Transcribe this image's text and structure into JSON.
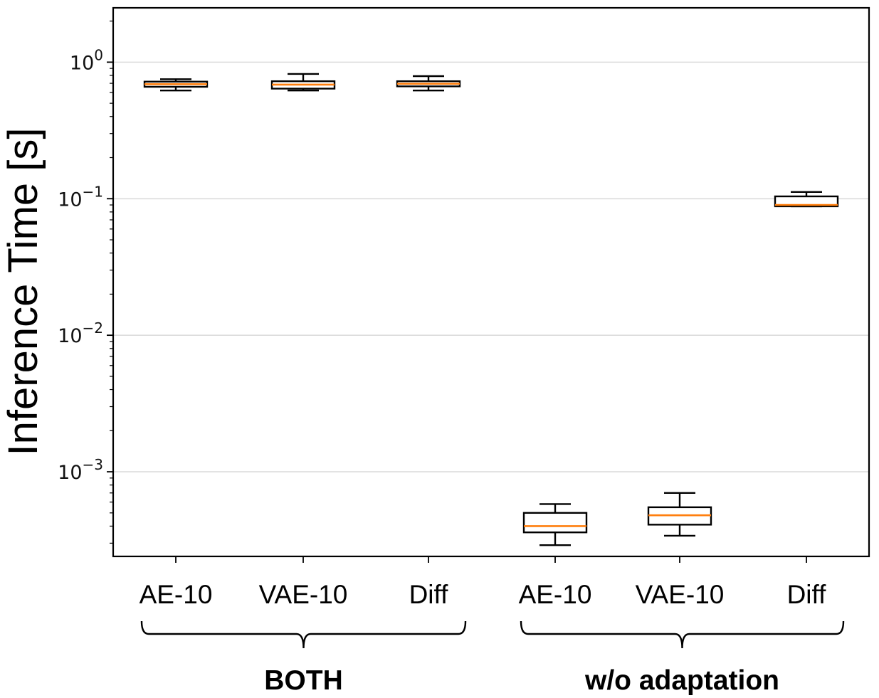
{
  "chart_data": {
    "type": "box",
    "title": "",
    "xlabel": "",
    "ylabel": "Inference Time [s]",
    "yscale": "log",
    "ylim": [
      0.00024,
      2.5
    ],
    "yticks": [
      0.001,
      0.01,
      0.1,
      1
    ],
    "ytick_labels": [
      {
        "base": "10",
        "exp": "−3"
      },
      {
        "base": "10",
        "exp": "−2"
      },
      {
        "base": "10",
        "exp": "−1"
      },
      {
        "base": "10",
        "exp": "0"
      }
    ],
    "grid": "horizontal",
    "median_color": "#ff7f0e",
    "box_color": "#000000",
    "categories": [
      "AE-10",
      "VAE-10",
      "Diff",
      "AE-10",
      "VAE-10",
      "Diff"
    ],
    "groups": [
      {
        "label": "BOTH",
        "categories": [
          0,
          1,
          2
        ]
      },
      {
        "label": "w/o adaptation",
        "categories": [
          3,
          4,
          5
        ]
      }
    ],
    "boxes": [
      {
        "category": "AE-10",
        "group": "BOTH",
        "whisker_low": 0.62,
        "q1": 0.66,
        "median": 0.69,
        "q3": 0.72,
        "whisker_high": 0.75
      },
      {
        "category": "VAE-10",
        "group": "BOTH",
        "whisker_low": 0.62,
        "q1": 0.64,
        "median": 0.685,
        "q3": 0.725,
        "whisker_high": 0.82
      },
      {
        "category": "Diff",
        "group": "BOTH",
        "whisker_low": 0.62,
        "q1": 0.665,
        "median": 0.695,
        "q3": 0.725,
        "whisker_high": 0.79
      },
      {
        "category": "AE-10",
        "group": "w/o adaptation",
        "whisker_low": 0.00029,
        "q1": 0.00036,
        "median": 0.0004,
        "q3": 0.0005,
        "whisker_high": 0.00058
      },
      {
        "category": "VAE-10",
        "group": "w/o adaptation",
        "whisker_low": 0.00034,
        "q1": 0.00041,
        "median": 0.00048,
        "q3": 0.00055,
        "whisker_high": 0.0007
      },
      {
        "category": "Diff",
        "group": "w/o adaptation",
        "whisker_low": 0.088,
        "q1": 0.088,
        "median": 0.09,
        "q3": 0.104,
        "whisker_high": 0.112
      }
    ]
  }
}
